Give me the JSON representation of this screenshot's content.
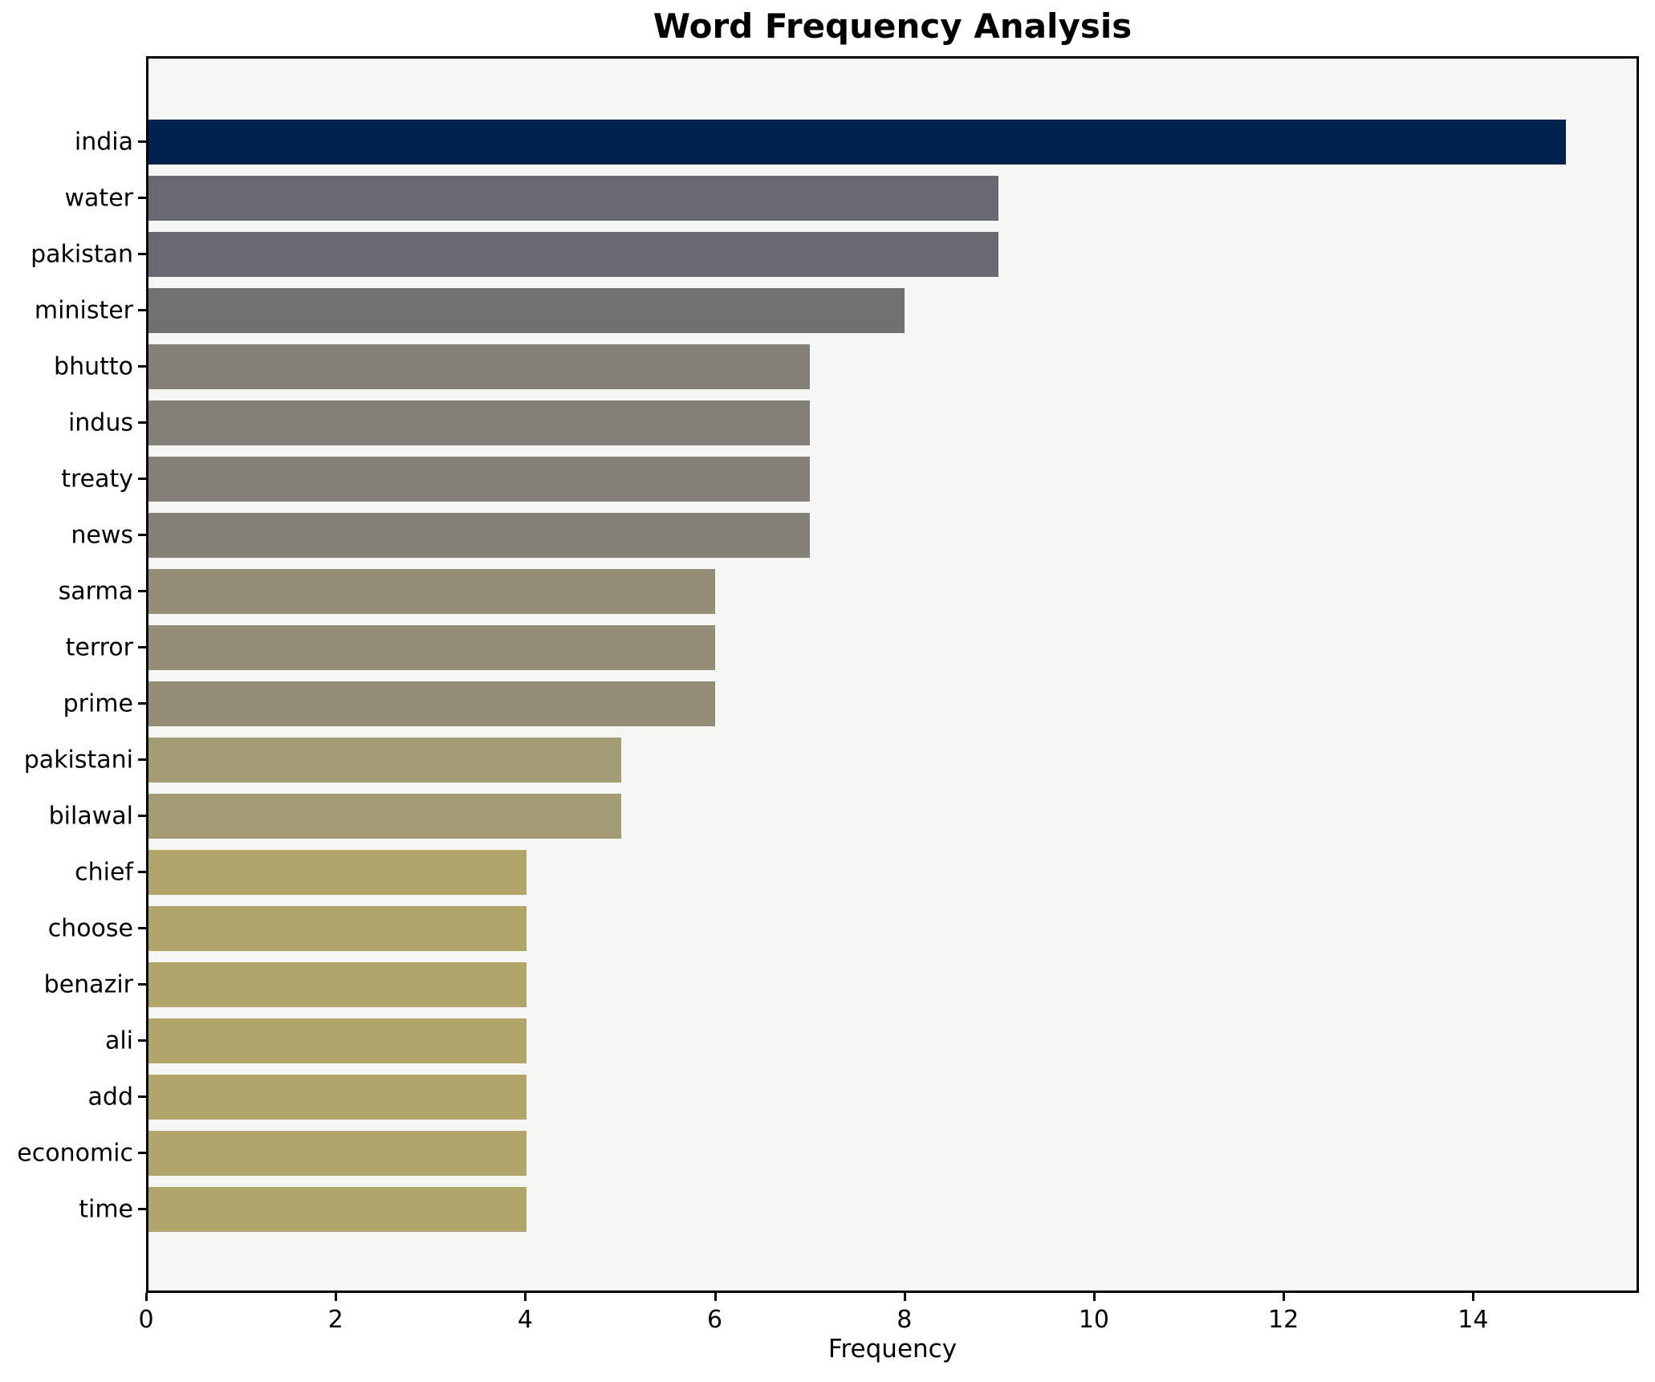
{
  "chart_data": {
    "type": "bar",
    "orientation": "horizontal",
    "title": "Word Frequency Analysis",
    "xlabel": "Frequency",
    "ylabel": "",
    "categories": [
      "india",
      "water",
      "pakistan",
      "minister",
      "bhutto",
      "indus",
      "treaty",
      "news",
      "sarma",
      "terror",
      "prime",
      "pakistani",
      "bilawal",
      "chief",
      "choose",
      "benazir",
      "ali",
      "add",
      "economic",
      "time"
    ],
    "values": [
      15,
      9,
      9,
      8,
      7,
      7,
      7,
      7,
      6,
      6,
      6,
      5,
      5,
      4,
      4,
      4,
      4,
      4,
      4,
      4
    ],
    "bar_colors": [
      "#00224e",
      "#66696f",
      "#66696f",
      "#727170",
      "#848076",
      "#848076",
      "#848076",
      "#848076",
      "#948e77",
      "#948e77",
      "#948e77",
      "#a39c74",
      "#a39c74",
      "#b1a569",
      "#b1a569",
      "#b1a569",
      "#b1a569",
      "#b1a569",
      "#b1a569",
      "#b1a569"
    ],
    "xlim": [
      0,
      15.75
    ],
    "xticks": [
      0,
      2,
      4,
      6,
      8,
      10,
      12,
      14
    ],
    "grid": false,
    "legend_position": "none",
    "plot_background": "#f6f6f4",
    "figure_background": "#ffffff",
    "spine_color": "#000000"
  }
}
